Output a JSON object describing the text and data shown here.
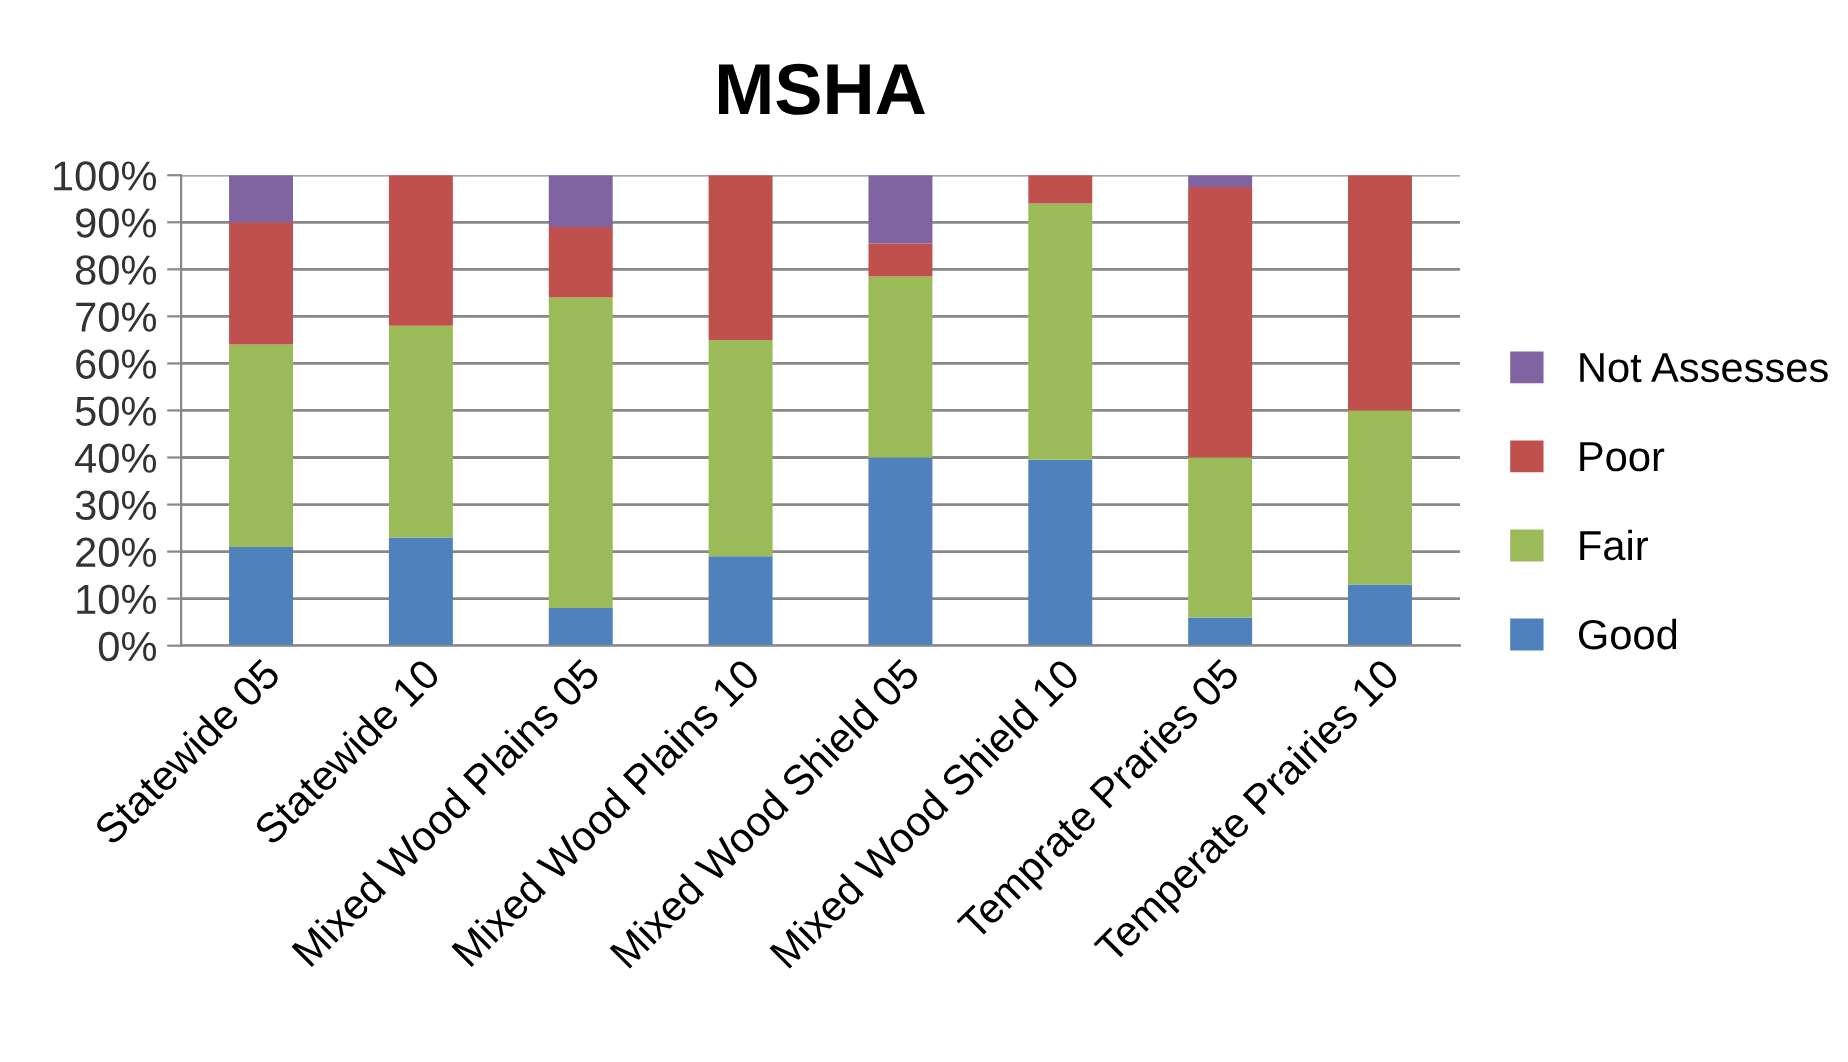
{
  "chart_data": {
    "type": "bar",
    "title": "MSHA",
    "stacked": true,
    "categories": [
      "Statewide 05",
      "Statewide 10",
      "Mixed Wood Plains 05",
      "Mixed Wood Plains 10",
      "Mixed Wood Shield 05",
      "Mixed Wood Shield 10",
      "Temprate Praries 05",
      "Temperate Prairies 10"
    ],
    "series": [
      {
        "name": "Good",
        "color": "#4f81bd",
        "values": [
          21,
          23,
          8,
          19,
          40,
          39.5,
          6,
          13
        ]
      },
      {
        "name": "Fair",
        "color": "#9bbb59",
        "values": [
          43,
          45,
          66,
          46,
          38.5,
          54.5,
          34,
          37
        ]
      },
      {
        "name": "Poor",
        "color": "#c0504d",
        "values": [
          26,
          32,
          15,
          35,
          7,
          6,
          57.5,
          50
        ]
      },
      {
        "name": "Not Assesses",
        "color": "#8064a2",
        "values": [
          10,
          0,
          11,
          0,
          14.5,
          0,
          2.5,
          0
        ]
      }
    ],
    "ylim": [
      0,
      100
    ],
    "yticks": [
      {
        "value": 0,
        "label": "0%"
      },
      {
        "value": 10,
        "label": "10%"
      },
      {
        "value": 20,
        "label": "20%"
      },
      {
        "value": 30,
        "label": "30%"
      },
      {
        "value": 40,
        "label": "40%"
      },
      {
        "value": 50,
        "label": "50%"
      },
      {
        "value": 60,
        "label": "60%"
      },
      {
        "value": 70,
        "label": "70%"
      },
      {
        "value": 80,
        "label": "80%"
      },
      {
        "value": 90,
        "label": "90%"
      },
      {
        "value": 100,
        "label": "100%"
      }
    ],
    "grid": "y",
    "legend": "right"
  }
}
